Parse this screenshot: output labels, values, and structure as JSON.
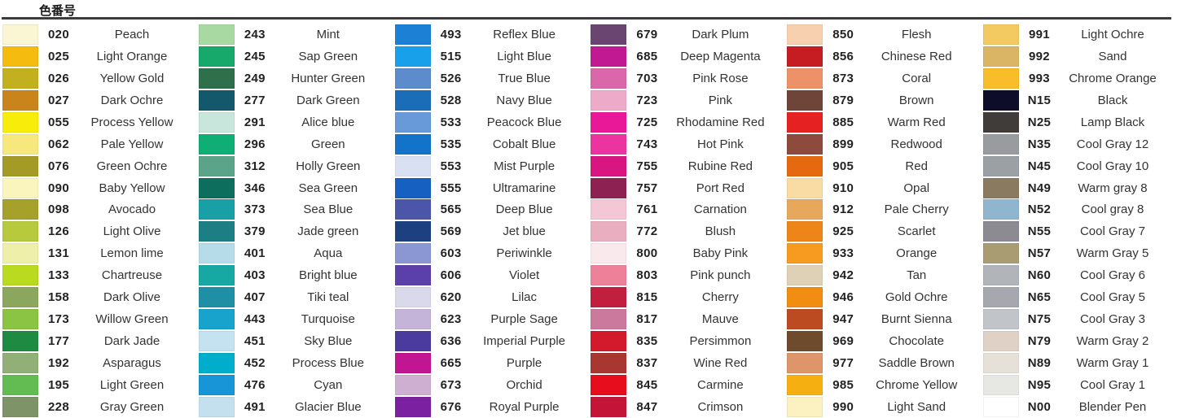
{
  "header": {
    "title": "色番号"
  },
  "columns": [
    {
      "items": [
        {
          "code": "020",
          "name": "Peach",
          "color": "#FAF5D3"
        },
        {
          "code": "025",
          "name": "Light Orange",
          "color": "#F5BB0F"
        },
        {
          "code": "026",
          "name": "Yellow Gold",
          "color": "#C3B01F"
        },
        {
          "code": "027",
          "name": "Dark Ochre",
          "color": "#C9851B"
        },
        {
          "code": "055",
          "name": "Process Yellow",
          "color": "#F8EC0A"
        },
        {
          "code": "062",
          "name": "Pale Yellow",
          "color": "#F7E87D"
        },
        {
          "code": "076",
          "name": "Green Ochre",
          "color": "#A49A26"
        },
        {
          "code": "090",
          "name": "Baby Yellow",
          "color": "#FAF4BD"
        },
        {
          "code": "098",
          "name": "Avocado",
          "color": "#A5A12B"
        },
        {
          "code": "126",
          "name": "Light Olive",
          "color": "#B7C93C"
        },
        {
          "code": "131",
          "name": "Lemon lime",
          "color": "#EEF0A9"
        },
        {
          "code": "133",
          "name": "Chartreuse",
          "color": "#B9DA1E"
        },
        {
          "code": "158",
          "name": "Dark Olive",
          "color": "#8BA75D"
        },
        {
          "code": "173",
          "name": "Willow Green",
          "color": "#8BC442"
        },
        {
          "code": "177",
          "name": "Dark Jade",
          "color": "#1F8A41"
        },
        {
          "code": "192",
          "name": "Asparagus",
          "color": "#90B077"
        },
        {
          "code": "195",
          "name": "Light Green",
          "color": "#63BC51"
        },
        {
          "code": "228",
          "name": "Gray Green",
          "color": "#7E9368"
        }
      ]
    },
    {
      "items": [
        {
          "code": "243",
          "name": "Mint",
          "color": "#A9D9A2"
        },
        {
          "code": "245",
          "name": "Sap Green",
          "color": "#16A96B"
        },
        {
          "code": "249",
          "name": "Hunter Green",
          "color": "#2E6F4C"
        },
        {
          "code": "277",
          "name": "Dark Green",
          "color": "#14596B"
        },
        {
          "code": "291",
          "name": "Alice blue",
          "color": "#C8E6DB"
        },
        {
          "code": "296",
          "name": "Green",
          "color": "#0FAE74"
        },
        {
          "code": "312",
          "name": "Holly Green",
          "color": "#5CA489"
        },
        {
          "code": "346",
          "name": "Sea Green",
          "color": "#0D6E5D"
        },
        {
          "code": "373",
          "name": "Sea Blue",
          "color": "#18A0A6"
        },
        {
          "code": "379",
          "name": "Jade green",
          "color": "#1B7F83"
        },
        {
          "code": "401",
          "name": "Aqua",
          "color": "#B7DCE9"
        },
        {
          "code": "403",
          "name": "Bright blue",
          "color": "#17A8A4"
        },
        {
          "code": "407",
          "name": "Tiki teal",
          "color": "#1F8FA6"
        },
        {
          "code": "443",
          "name": "Turquoise",
          "color": "#18A3CD"
        },
        {
          "code": "451",
          "name": "Sky Blue",
          "color": "#C5E2F0"
        },
        {
          "code": "452",
          "name": "Process Blue",
          "color": "#00AECB"
        },
        {
          "code": "476",
          "name": "Cyan",
          "color": "#1795D7"
        },
        {
          "code": "491",
          "name": "Glacier Blue",
          "color": "#C4E0EF"
        }
      ]
    },
    {
      "items": [
        {
          "code": "493",
          "name": "Reflex Blue",
          "color": "#1C80D5"
        },
        {
          "code": "515",
          "name": "Light Blue",
          "color": "#18A0EA"
        },
        {
          "code": "526",
          "name": "True Blue",
          "color": "#5C8CCB"
        },
        {
          "code": "528",
          "name": "Navy Blue",
          "color": "#1A6DB6"
        },
        {
          "code": "533",
          "name": "Peacock Blue",
          "color": "#689AD9"
        },
        {
          "code": "535",
          "name": "Cobalt Blue",
          "color": "#1273C9"
        },
        {
          "code": "553",
          "name": "Mist Purple",
          "color": "#D9E0F3"
        },
        {
          "code": "555",
          "name": "Ultramarine",
          "color": "#1560C1"
        },
        {
          "code": "565",
          "name": "Deep Blue",
          "color": "#4B56A9"
        },
        {
          "code": "569",
          "name": "Jet blue",
          "color": "#1C4080"
        },
        {
          "code": "603",
          "name": "Periwinkle",
          "color": "#8B97D3"
        },
        {
          "code": "606",
          "name": "Violet",
          "color": "#5C40A9"
        },
        {
          "code": "620",
          "name": "Lilac",
          "color": "#DAD8EB"
        },
        {
          "code": "623",
          "name": "Purple Sage",
          "color": "#C4B4D9"
        },
        {
          "code": "636",
          "name": "Imperial Purple",
          "color": "#4C3B9F"
        },
        {
          "code": "665",
          "name": "Purple",
          "color": "#C11591"
        },
        {
          "code": "673",
          "name": "Orchid",
          "color": "#CFAFD1"
        },
        {
          "code": "676",
          "name": "Royal Purple",
          "color": "#7B20A1"
        }
      ]
    },
    {
      "items": [
        {
          "code": "679",
          "name": "Dark Plum",
          "color": "#6B4571"
        },
        {
          "code": "685",
          "name": "Deep Magenta",
          "color": "#C11991"
        },
        {
          "code": "703",
          "name": "Pink Rose",
          "color": "#DA67A9"
        },
        {
          "code": "723",
          "name": "Pink",
          "color": "#EDABC9"
        },
        {
          "code": "725",
          "name": "Rhodamine Red",
          "color": "#E91899"
        },
        {
          "code": "743",
          "name": "Hot Pink",
          "color": "#EC34A0"
        },
        {
          "code": "755",
          "name": "Rubine Red",
          "color": "#D91581"
        },
        {
          "code": "757",
          "name": "Port Red",
          "color": "#8D2151"
        },
        {
          "code": "761",
          "name": "Carnation",
          "color": "#F3C7D5"
        },
        {
          "code": "772",
          "name": "Blush",
          "color": "#E9AFC1"
        },
        {
          "code": "800",
          "name": "Baby Pink",
          "color": "#F9E9ED"
        },
        {
          "code": "803",
          "name": "Pink punch",
          "color": "#ED8199"
        },
        {
          "code": "815",
          "name": "Cherry",
          "color": "#C11F3D"
        },
        {
          "code": "817",
          "name": "Mauve",
          "color": "#CB7A9D"
        },
        {
          "code": "835",
          "name": "Persimmon",
          "color": "#D31A2C"
        },
        {
          "code": "837",
          "name": "Wine Red",
          "color": "#A83732"
        },
        {
          "code": "845",
          "name": "Carmine",
          "color": "#E80D1C"
        },
        {
          "code": "847",
          "name": "Crimson",
          "color": "#C41538"
        }
      ]
    },
    {
      "items": [
        {
          "code": "850",
          "name": "Flesh",
          "color": "#F6D0AF"
        },
        {
          "code": "856",
          "name": "Chinese Red",
          "color": "#C51D21"
        },
        {
          "code": "873",
          "name": "Coral",
          "color": "#ED9169"
        },
        {
          "code": "879",
          "name": "Brown",
          "color": "#6F4539"
        },
        {
          "code": "885",
          "name": "Warm Red",
          "color": "#E52121"
        },
        {
          "code": "899",
          "name": "Redwood",
          "color": "#8D4B3D"
        },
        {
          "code": "905",
          "name": "Red",
          "color": "#E5690F"
        },
        {
          "code": "910",
          "name": "Opal",
          "color": "#F8DCA4"
        },
        {
          "code": "912",
          "name": "Pale Cherry",
          "color": "#E8A85C"
        },
        {
          "code": "925",
          "name": "Scarlet",
          "color": "#EE8519"
        },
        {
          "code": "933",
          "name": "Orange",
          "color": "#F69B1F"
        },
        {
          "code": "942",
          "name": "Tan",
          "color": "#DFD1B5"
        },
        {
          "code": "946",
          "name": "Gold Ochre",
          "color": "#F18D11"
        },
        {
          "code": "947",
          "name": "Burnt Sienna",
          "color": "#BD4B21"
        },
        {
          "code": "969",
          "name": "Chocolate",
          "color": "#6F4B2D"
        },
        {
          "code": "977",
          "name": "Saddle Brown",
          "color": "#DD9569"
        },
        {
          "code": "985",
          "name": "Chrome Yellow",
          "color": "#F6AF11"
        },
        {
          "code": "990",
          "name": "Light Sand",
          "color": "#FBF1C1"
        }
      ]
    },
    {
      "items": [
        {
          "code": "991",
          "name": "Light Ochre",
          "color": "#F3C961"
        },
        {
          "code": "992",
          "name": "Sand",
          "color": "#D9B565"
        },
        {
          "code": "993",
          "name": "Chrome Orange",
          "color": "#F9BD29"
        },
        {
          "code": "N15",
          "name": "Black",
          "color": "#0D0D29"
        },
        {
          "code": "N25",
          "name": "Lamp Black",
          "color": "#403C3A"
        },
        {
          "code": "N35",
          "name": "Cool Gray 12",
          "color": "#999C9E"
        },
        {
          "code": "N45",
          "name": "Cool Gray 10",
          "color": "#9AA0A4"
        },
        {
          "code": "N49",
          "name": "Warm gray 8",
          "color": "#8A7B60"
        },
        {
          "code": "N52",
          "name": "Cool gray 8",
          "color": "#8FB6CE"
        },
        {
          "code": "N55",
          "name": "Cool Gray 7",
          "color": "#8B8B91"
        },
        {
          "code": "N57",
          "name": "Warm Gray 5",
          "color": "#A99C72"
        },
        {
          "code": "N60",
          "name": "Cool Gray 6",
          "color": "#B1B5B9"
        },
        {
          "code": "N65",
          "name": "Cool Gray 5",
          "color": "#A5A9AF"
        },
        {
          "code": "N75",
          "name": "Cool Gray 3",
          "color": "#C1C5C9"
        },
        {
          "code": "N79",
          "name": "Warm Gray 2",
          "color": "#DFD1C5"
        },
        {
          "code": "N89",
          "name": "Warm Gray 1",
          "color": "#E5E1D9"
        },
        {
          "code": "N95",
          "name": "Cool Gray 1",
          "color": "#E7E8E4"
        },
        {
          "code": "N00",
          "name": "Blender Pen",
          "color": "#FFFFFF"
        }
      ]
    }
  ]
}
